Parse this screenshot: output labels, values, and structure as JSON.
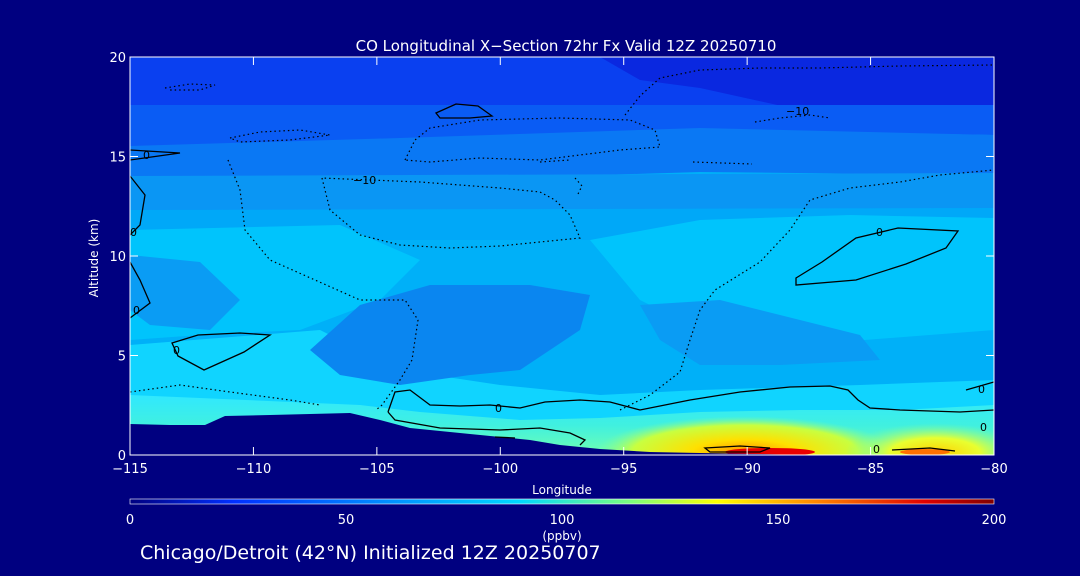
{
  "chart_data": {
    "type": "heatmap",
    "title": "CO Longitudinal X−Section 72hr  Fx Valid 12Z 20250710",
    "xlabel": "Longitude",
    "ylabel": "Altitude (km)",
    "xlim": [
      -115,
      -80
    ],
    "ylim": [
      0,
      20
    ],
    "x_ticks": [
      -115,
      -110,
      -105,
      -100,
      -95,
      -90,
      -85,
      -80
    ],
    "x_tick_labels": [
      "−115",
      "−110",
      "−105",
      "−100",
      "−95",
      "−90",
      "−85",
      "−80"
    ],
    "y_ticks": [
      0,
      5,
      10,
      15,
      20
    ],
    "y_tick_labels": [
      "0",
      "5",
      "10",
      "15",
      "20"
    ],
    "colorbar": {
      "label": "(ppbv)",
      "min": 0,
      "max": 200,
      "ticks": [
        0,
        50,
        100,
        150,
        200
      ],
      "tick_labels": [
        "0",
        "50",
        "100",
        "150",
        "200"
      ],
      "colormap": [
        "#000080",
        "#0040ff",
        "#00c8ff",
        "#7cff7c",
        "#ffff00",
        "#ff8000",
        "#d00000",
        "#800000"
      ]
    },
    "co_field_ppbv": {
      "description": "approximate CO mixing ratio read from fill colors",
      "altitude_levels_km": [
        0.5,
        1.5,
        2.5,
        4,
        6,
        8,
        10,
        12,
        14,
        16,
        18
      ],
      "longitudes": [
        -115,
        -110,
        -105,
        -100,
        -95,
        -90,
        -85,
        -80
      ],
      "values": [
        [
          10,
          10,
          10,
          80,
          95,
          120,
          115,
          112
        ],
        [
          10,
          10,
          10,
          76,
          80,
          92,
          90,
          90
        ],
        [
          72,
          70,
          68,
          72,
          72,
          74,
          72,
          74
        ],
        [
          66,
          64,
          62,
          58,
          60,
          62,
          62,
          62
        ],
        [
          62,
          62,
          60,
          56,
          58,
          60,
          60,
          60
        ],
        [
          58,
          60,
          60,
          56,
          62,
          60,
          60,
          60
        ],
        [
          60,
          62,
          62,
          58,
          64,
          62,
          60,
          62
        ],
        [
          56,
          56,
          58,
          60,
          60,
          58,
          58,
          58
        ],
        [
          52,
          50,
          52,
          54,
          54,
          52,
          52,
          52
        ],
        [
          46,
          46,
          48,
          48,
          48,
          46,
          46,
          46
        ],
        [
          42,
          42,
          44,
          44,
          44,
          40,
          40,
          40
        ]
      ]
    },
    "contours": {
      "levels": [
        -10,
        0
      ],
      "labels": [
        "−10",
        "0"
      ],
      "dotted_level": -10,
      "solid_level": 0
    },
    "grid": false
  },
  "footer": "Chicago/Detroit (42°N) Initialized 12Z 20250707"
}
